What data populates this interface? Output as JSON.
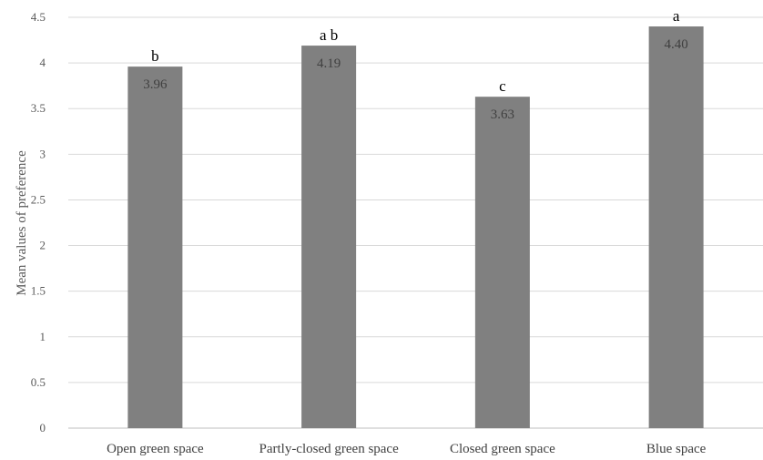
{
  "chart_data": {
    "type": "bar",
    "title": "",
    "xlabel": "",
    "ylabel": "Mean values of preference",
    "ylim": [
      0,
      4.5
    ],
    "yticks": [
      "0",
      "0.5",
      "1",
      "1.5",
      "2",
      "2.5",
      "3",
      "3.5",
      "4",
      "4.5"
    ],
    "categories": [
      "Open green space",
      "Partly-closed green space",
      "Closed green space",
      "Blue space"
    ],
    "values": [
      3.96,
      4.19,
      3.63,
      4.4
    ],
    "value_labels": [
      "3.96",
      "4.19",
      "3.63",
      "4.40"
    ],
    "group_labels": [
      "b",
      "a b",
      "c",
      "a"
    ],
    "grid": true,
    "legend": "none",
    "colors": {
      "bar": "#808080",
      "grid": "#d9d9d9"
    }
  }
}
